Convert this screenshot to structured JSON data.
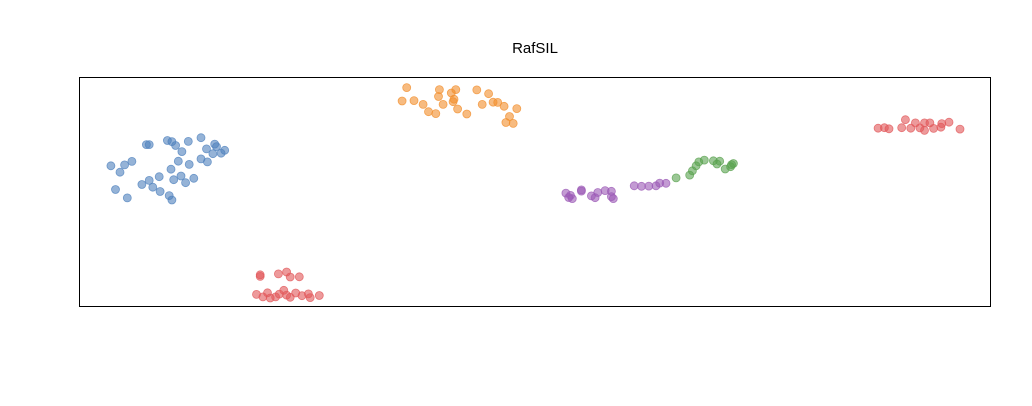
{
  "chart_data": {
    "type": "scatter",
    "title": "RafSIL",
    "xlabel": "",
    "ylabel": "",
    "xlim": [
      0,
      100
    ],
    "ylim": [
      0,
      100
    ],
    "axes_shown": false,
    "ticks_shown": false,
    "grid": false,
    "legend": "none",
    "series": [
      {
        "color": "#4f81bd",
        "points": [
          [
            3.4,
            61.5
          ],
          [
            4.4,
            58.7
          ],
          [
            4.9,
            61.9
          ],
          [
            5.7,
            63.4
          ],
          [
            3.9,
            51.1
          ],
          [
            5.2,
            47.4
          ],
          [
            7.3,
            70.8
          ],
          [
            7.6,
            70.8
          ],
          [
            10.1,
            72.1
          ],
          [
            10.5,
            70.4
          ],
          [
            9.6,
            72.6
          ],
          [
            11.9,
            72.2
          ],
          [
            11.2,
            67.7
          ],
          [
            10.8,
            63.5
          ],
          [
            8.7,
            56.7
          ],
          [
            7.6,
            55.1
          ],
          [
            8.0,
            52.1
          ],
          [
            8.8,
            50.2
          ],
          [
            9.8,
            48.4
          ],
          [
            10.1,
            46.5
          ],
          [
            10.3,
            55.4
          ],
          [
            11.1,
            57.0
          ],
          [
            11.6,
            54.1
          ],
          [
            12.5,
            56.0
          ],
          [
            12.0,
            62.1
          ],
          [
            13.3,
            64.5
          ],
          [
            14.0,
            63.2
          ],
          [
            14.6,
            66.8
          ],
          [
            13.9,
            68.9
          ],
          [
            15.0,
            69.9
          ],
          [
            15.5,
            67.0
          ],
          [
            14.8,
            71.0
          ],
          [
            15.9,
            68.3
          ],
          [
            10.0,
            60.0
          ],
          [
            13.3,
            73.8
          ],
          [
            6.8,
            53.3
          ]
        ]
      },
      {
        "color": "#f28e2b",
        "points": [
          [
            35.9,
            95.8
          ],
          [
            35.4,
            89.9
          ],
          [
            36.7,
            90.1
          ],
          [
            37.7,
            88.4
          ],
          [
            38.3,
            85.2
          ],
          [
            39.1,
            84.4
          ],
          [
            39.4,
            91.9
          ],
          [
            39.9,
            88.4
          ],
          [
            39.5,
            94.9
          ],
          [
            40.8,
            93.4
          ],
          [
            41.0,
            89.6
          ],
          [
            41.3,
            94.9
          ],
          [
            41.1,
            90.7
          ],
          [
            41.5,
            86.4
          ],
          [
            42.5,
            84.2
          ],
          [
            43.6,
            94.8
          ],
          [
            44.2,
            88.4
          ],
          [
            44.9,
            93.1
          ],
          [
            45.4,
            89.4
          ],
          [
            45.9,
            89.3
          ],
          [
            46.6,
            87.6
          ],
          [
            47.2,
            83.1
          ],
          [
            46.8,
            80.5
          ],
          [
            47.6,
            80.1
          ],
          [
            48.0,
            86.6
          ]
        ]
      },
      {
        "color": "#e15759",
        "points": [
          [
            19.4,
            5.1
          ],
          [
            20.1,
            4.0
          ],
          [
            20.6,
            5.8
          ],
          [
            20.9,
            3.5
          ],
          [
            21.5,
            4.0
          ],
          [
            21.9,
            5.2
          ],
          [
            22.4,
            6.9
          ],
          [
            22.7,
            4.8
          ],
          [
            23.1,
            3.8
          ],
          [
            23.7,
            5.7
          ],
          [
            24.4,
            4.5
          ],
          [
            25.1,
            5.3
          ],
          [
            25.3,
            3.7
          ],
          [
            26.3,
            4.6
          ],
          [
            24.1,
            12.8
          ],
          [
            23.1,
            12.7
          ],
          [
            22.7,
            14.9
          ],
          [
            21.8,
            14.1
          ],
          [
            19.8,
            13.7
          ],
          [
            19.8,
            13.0
          ]
        ]
      },
      {
        "color": "#e15759",
        "points": [
          [
            87.7,
            78.0
          ],
          [
            88.4,
            78.2
          ],
          [
            88.9,
            77.7
          ],
          [
            90.3,
            78.2
          ],
          [
            90.7,
            81.7
          ],
          [
            91.3,
            78.0
          ],
          [
            91.8,
            80.3
          ],
          [
            92.3,
            78.1
          ],
          [
            92.8,
            80.3
          ],
          [
            92.8,
            77.0
          ],
          [
            93.4,
            80.3
          ],
          [
            93.8,
            77.9
          ],
          [
            94.6,
            78.4
          ],
          [
            94.7,
            80.0
          ],
          [
            95.5,
            80.6
          ],
          [
            96.7,
            77.6
          ]
        ]
      },
      {
        "color": "#9b59b6",
        "points": [
          [
            53.9,
            48.5
          ],
          [
            53.4,
            49.5
          ],
          [
            53.7,
            47.6
          ],
          [
            54.1,
            47.1
          ],
          [
            55.1,
            50.4
          ],
          [
            55.1,
            50.9
          ],
          [
            56.2,
            48.3
          ],
          [
            56.6,
            47.5
          ],
          [
            56.9,
            49.8
          ],
          [
            57.7,
            50.6
          ],
          [
            58.4,
            50.3
          ],
          [
            58.4,
            48.0
          ],
          [
            58.6,
            47.1
          ],
          [
            60.9,
            52.7
          ],
          [
            61.7,
            52.5
          ],
          [
            62.5,
            52.6
          ],
          [
            63.3,
            52.7
          ],
          [
            63.7,
            53.9
          ],
          [
            64.4,
            53.8
          ]
        ]
      },
      {
        "color": "#59a14f",
        "points": [
          [
            65.5,
            56.2
          ],
          [
            67.0,
            57.4
          ],
          [
            67.3,
            59.3
          ],
          [
            67.7,
            61.5
          ],
          [
            68.0,
            63.2
          ],
          [
            68.6,
            64.0
          ],
          [
            69.6,
            63.7
          ],
          [
            70.0,
            62.3
          ],
          [
            70.3,
            63.5
          ],
          [
            70.9,
            60.1
          ],
          [
            71.6,
            62.0
          ],
          [
            71.5,
            61.1
          ],
          [
            71.8,
            62.5
          ]
        ]
      }
    ]
  }
}
